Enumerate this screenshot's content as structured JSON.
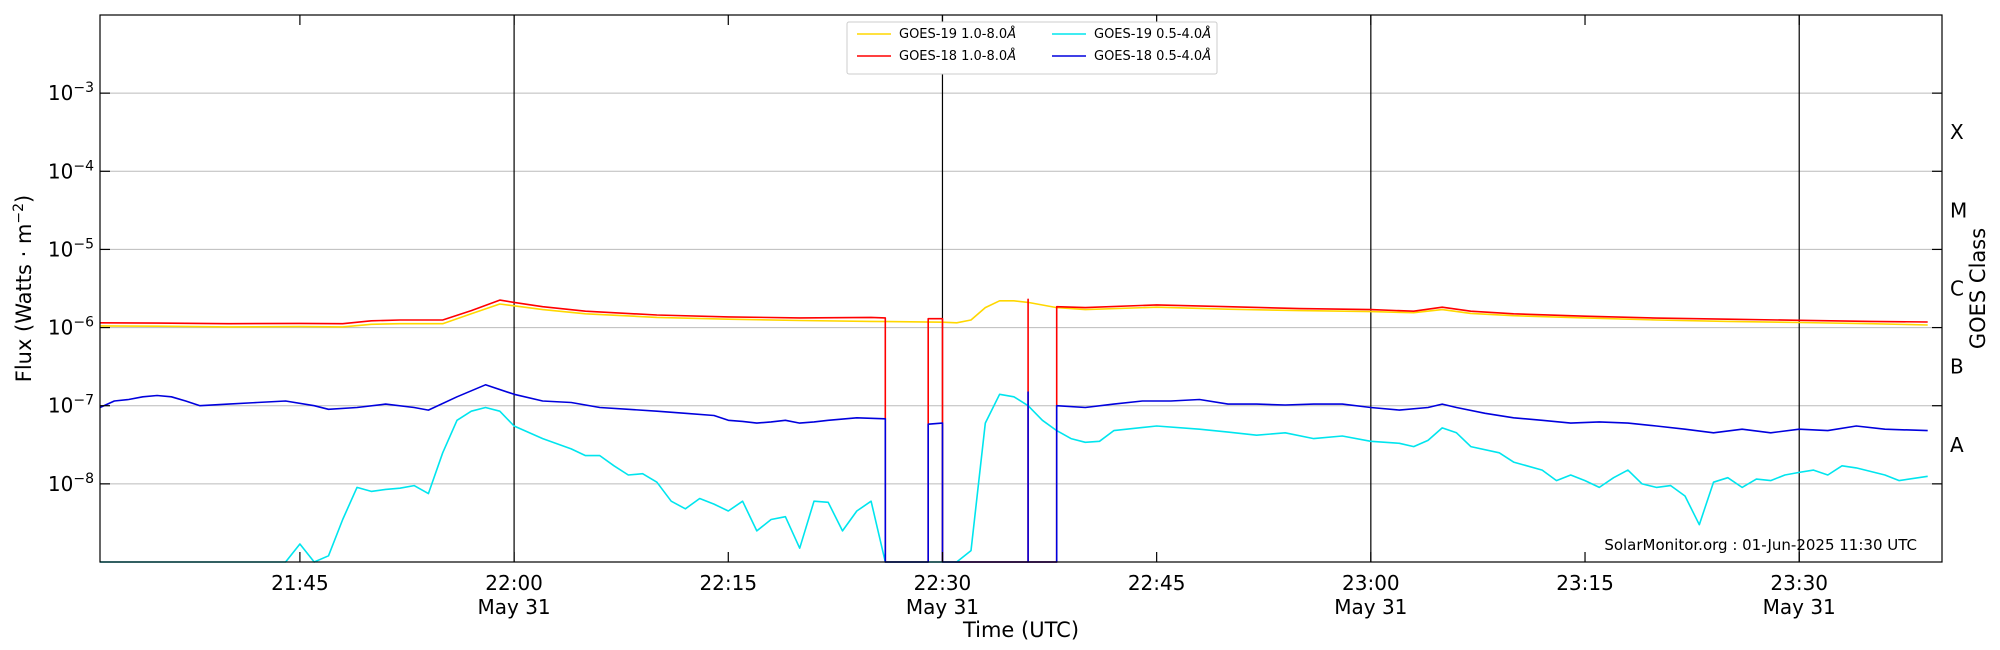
{
  "chart_data": {
    "type": "line",
    "xlabel": "Time (UTC)",
    "ylabel": "Flux (Watts · m",
    "ylabel_exp": "−2",
    "ylabel_close": ")",
    "right_label": "GOES Class",
    "y_scale": "log",
    "ylim": [
      1e-09,
      0.01
    ],
    "xlim": [
      "21:31",
      "23:40"
    ],
    "grid": "horizontal",
    "legend_position": "top-center",
    "annotation": "SolarMonitor.org : 01-Jun-2025 11:30 UTC",
    "y_ticks": [
      {
        "exp": "−8",
        "value": 1e-08
      },
      {
        "exp": "−7",
        "value": 1e-07
      },
      {
        "exp": "−6",
        "value": 1e-06
      },
      {
        "exp": "−5",
        "value": 1e-05
      },
      {
        "exp": "−4",
        "value": 0.0001
      },
      {
        "exp": "−3",
        "value": 0.001
      }
    ],
    "class_labels": [
      {
        "label": "A",
        "value": 3.16e-08
      },
      {
        "label": "B",
        "value": 3.16e-07
      },
      {
        "label": "C",
        "value": 3.16e-06
      },
      {
        "label": "M",
        "value": 3.16e-05
      },
      {
        "label": "X",
        "value": 0.000316
      }
    ],
    "x_ticks": [
      {
        "time": "21:45",
        "label": "21:45",
        "date": ""
      },
      {
        "time": "22:00",
        "label": "22:00",
        "date": "May 31"
      },
      {
        "time": "22:15",
        "label": "22:15",
        "date": ""
      },
      {
        "time": "22:30",
        "label": "22:30",
        "date": "May 31"
      },
      {
        "time": "22:45",
        "label": "22:45",
        "date": ""
      },
      {
        "time": "23:00",
        "label": "23:00",
        "date": "May 31"
      },
      {
        "time": "23:15",
        "label": "23:15",
        "date": ""
      },
      {
        "time": "23:30",
        "label": "23:30",
        "date": "May 31"
      }
    ],
    "vlines": [
      "22:00",
      "22:30",
      "23:00",
      "23:30"
    ],
    "series": [
      {
        "name": "GOES-19 1.0-8.0",
        "unit": "Å",
        "color": "#ffd700",
        "points": [
          [
            "21:31",
            1.05e-06
          ],
          [
            "21:35",
            1.04e-06
          ],
          [
            "21:40",
            1.02e-06
          ],
          [
            "21:45",
            1.03e-06
          ],
          [
            "21:48",
            1.02e-06
          ],
          [
            "21:50",
            1.1e-06
          ],
          [
            "21:52",
            1.12e-06
          ],
          [
            "21:55",
            1.12e-06
          ],
          [
            "21:57",
            1.5e-06
          ],
          [
            "21:59",
            2e-06
          ],
          [
            "22:00",
            1.9e-06
          ],
          [
            "22:02",
            1.7e-06
          ],
          [
            "22:05",
            1.5e-06
          ],
          [
            "22:10",
            1.35e-06
          ],
          [
            "22:15",
            1.28e-06
          ],
          [
            "22:20",
            1.23e-06
          ],
          [
            "22:25",
            1.2e-06
          ],
          [
            "22:30",
            1.17e-06
          ],
          [
            "22:31",
            1.15e-06
          ],
          [
            "22:32",
            1.25e-06
          ],
          [
            "22:33",
            1.8e-06
          ],
          [
            "22:34",
            2.2e-06
          ],
          [
            "22:35",
            2.2e-06
          ],
          [
            "22:36",
            2.1e-06
          ],
          [
            "22:38",
            1.8e-06
          ],
          [
            "22:40",
            1.7e-06
          ],
          [
            "22:45",
            1.82e-06
          ],
          [
            "22:50",
            1.72e-06
          ],
          [
            "22:55",
            1.65e-06
          ],
          [
            "23:00",
            1.6e-06
          ],
          [
            "23:03",
            1.55e-06
          ],
          [
            "23:05",
            1.7e-06
          ],
          [
            "23:07",
            1.52e-06
          ],
          [
            "23:10",
            1.42e-06
          ],
          [
            "23:15",
            1.33e-06
          ],
          [
            "23:20",
            1.25e-06
          ],
          [
            "23:25",
            1.2e-06
          ],
          [
            "23:30",
            1.16e-06
          ],
          [
            "23:35",
            1.12e-06
          ],
          [
            "23:39",
            1.08e-06
          ]
        ]
      },
      {
        "name": "GOES-18 1.0-8.0",
        "unit": "Å",
        "color": "#ff0000",
        "points": [
          [
            "21:31",
            1.15e-06
          ],
          [
            "21:35",
            1.14e-06
          ],
          [
            "21:40",
            1.12e-06
          ],
          [
            "21:45",
            1.13e-06
          ],
          [
            "21:48",
            1.12e-06
          ],
          [
            "21:50",
            1.22e-06
          ],
          [
            "21:52",
            1.25e-06
          ],
          [
            "21:55",
            1.25e-06
          ],
          [
            "21:57",
            1.65e-06
          ],
          [
            "21:59",
            2.25e-06
          ],
          [
            "22:00",
            2.1e-06
          ],
          [
            "22:02",
            1.85e-06
          ],
          [
            "22:05",
            1.62e-06
          ],
          [
            "22:10",
            1.45e-06
          ],
          [
            "22:15",
            1.37e-06
          ],
          [
            "22:20",
            1.33e-06
          ],
          [
            "22:25",
            1.35e-06
          ],
          [
            "22:26",
            1.33e-06
          ],
          [
            "22:26",
            1e-09
          ],
          [
            "22:29",
            1e-09
          ],
          [
            "22:29",
            1.3e-06
          ],
          [
            "22:30",
            1.3e-06
          ],
          [
            "22:30",
            1e-09
          ],
          [
            "22:36",
            1e-09
          ],
          [
            "22:36",
            2.3e-06
          ],
          [
            "22:36",
            1e-09
          ],
          [
            "22:38",
            1e-09
          ],
          [
            "22:38",
            1.85e-06
          ],
          [
            "22:40",
            1.8e-06
          ],
          [
            "22:45",
            1.95e-06
          ],
          [
            "22:50",
            1.85e-06
          ],
          [
            "22:55",
            1.75e-06
          ],
          [
            "23:00",
            1.7e-06
          ],
          [
            "23:03",
            1.62e-06
          ],
          [
            "23:05",
            1.82e-06
          ],
          [
            "23:07",
            1.62e-06
          ],
          [
            "23:10",
            1.5e-06
          ],
          [
            "23:15",
            1.4e-06
          ],
          [
            "23:20",
            1.32e-06
          ],
          [
            "23:25",
            1.28e-06
          ],
          [
            "23:30",
            1.24e-06
          ],
          [
            "23:35",
            1.2e-06
          ],
          [
            "23:39",
            1.18e-06
          ]
        ]
      },
      {
        "name": "GOES-19 0.5-4.0",
        "unit": "Å",
        "color": "#00e5ee",
        "points": [
          [
            "21:31",
            1e-09
          ],
          [
            "21:44",
            1e-09
          ],
          [
            "21:45",
            1.7e-09
          ],
          [
            "21:46",
            1e-09
          ],
          [
            "21:47",
            1.2e-09
          ],
          [
            "21:48",
            3.5e-09
          ],
          [
            "21:49",
            9e-09
          ],
          [
            "21:50",
            8e-09
          ],
          [
            "21:51",
            8.5e-09
          ],
          [
            "21:52",
            8.8e-09
          ],
          [
            "21:53",
            9.5e-09
          ],
          [
            "21:54",
            7.5e-09
          ],
          [
            "21:55",
            2.5e-08
          ],
          [
            "21:56",
            6.5e-08
          ],
          [
            "21:57",
            8.5e-08
          ],
          [
            "21:58",
            9.5e-08
          ],
          [
            "21:59",
            8.5e-08
          ],
          [
            "22:00",
            5.5e-08
          ],
          [
            "22:02",
            3.8e-08
          ],
          [
            "22:04",
            2.8e-08
          ],
          [
            "22:05",
            2.3e-08
          ],
          [
            "22:06",
            2.3e-08
          ],
          [
            "22:07",
            1.7e-08
          ],
          [
            "22:08",
            1.3e-08
          ],
          [
            "22:09",
            1.35e-08
          ],
          [
            "22:10",
            1.05e-08
          ],
          [
            "22:11",
            6e-09
          ],
          [
            "22:12",
            4.8e-09
          ],
          [
            "22:13",
            6.5e-09
          ],
          [
            "22:14",
            5.5e-09
          ],
          [
            "22:15",
            4.5e-09
          ],
          [
            "22:16",
            6e-09
          ],
          [
            "22:17",
            2.5e-09
          ],
          [
            "22:18",
            3.5e-09
          ],
          [
            "22:19",
            3.8e-09
          ],
          [
            "22:20",
            1.5e-09
          ],
          [
            "22:21",
            6e-09
          ],
          [
            "22:22",
            5.8e-09
          ],
          [
            "22:23",
            2.5e-09
          ],
          [
            "22:24",
            4.5e-09
          ],
          [
            "22:25",
            6e-09
          ],
          [
            "22:26",
            1e-09
          ],
          [
            "22:31",
            1e-09
          ],
          [
            "22:32",
            1.4e-09
          ],
          [
            "22:33",
            6e-08
          ],
          [
            "22:34",
            1.4e-07
          ],
          [
            "22:35",
            1.3e-07
          ],
          [
            "22:36",
            1e-07
          ],
          [
            "22:37",
            6.5e-08
          ],
          [
            "22:38",
            4.8e-08
          ],
          [
            "22:39",
            3.8e-08
          ],
          [
            "22:40",
            3.4e-08
          ],
          [
            "22:41",
            3.5e-08
          ],
          [
            "22:42",
            4.8e-08
          ],
          [
            "22:45",
            5.5e-08
          ],
          [
            "22:48",
            5e-08
          ],
          [
            "22:50",
            4.6e-08
          ],
          [
            "22:52",
            4.2e-08
          ],
          [
            "22:54",
            4.5e-08
          ],
          [
            "22:56",
            3.8e-08
          ],
          [
            "22:58",
            4.1e-08
          ],
          [
            "23:00",
            3.5e-08
          ],
          [
            "23:02",
            3.3e-08
          ],
          [
            "23:03",
            3e-08
          ],
          [
            "23:04",
            3.6e-08
          ],
          [
            "23:05",
            5.2e-08
          ],
          [
            "23:06",
            4.5e-08
          ],
          [
            "23:07",
            3e-08
          ],
          [
            "23:09",
            2.5e-08
          ],
          [
            "23:10",
            1.9e-08
          ],
          [
            "23:12",
            1.5e-08
          ],
          [
            "23:13",
            1.1e-08
          ],
          [
            "23:14",
            1.3e-08
          ],
          [
            "23:15",
            1.1e-08
          ],
          [
            "23:16",
            9e-09
          ],
          [
            "23:17",
            1.2e-08
          ],
          [
            "23:18",
            1.5e-08
          ],
          [
            "23:19",
            1e-08
          ],
          [
            "23:20",
            9e-09
          ],
          [
            "23:21",
            9.5e-09
          ],
          [
            "23:22",
            7e-09
          ],
          [
            "23:23",
            3e-09
          ],
          [
            "23:24",
            1.05e-08
          ],
          [
            "23:25",
            1.2e-08
          ],
          [
            "23:26",
            9e-09
          ],
          [
            "23:27",
            1.15e-08
          ],
          [
            "23:28",
            1.1e-08
          ],
          [
            "23:29",
            1.3e-08
          ],
          [
            "23:30",
            1.4e-08
          ],
          [
            "23:31",
            1.5e-08
          ],
          [
            "23:32",
            1.3e-08
          ],
          [
            "23:33",
            1.7e-08
          ],
          [
            "23:34",
            1.6e-08
          ],
          [
            "23:36",
            1.3e-08
          ],
          [
            "23:37",
            1.1e-08
          ],
          [
            "23:39",
            1.25e-08
          ]
        ]
      },
      {
        "name": "GOES-18 0.5-4.0",
        "unit": "Å",
        "color": "#0000dd",
        "points": [
          [
            "21:31",
            9.5e-08
          ],
          [
            "21:32",
            1.15e-07
          ],
          [
            "21:33",
            1.2e-07
          ],
          [
            "21:34",
            1.3e-07
          ],
          [
            "21:35",
            1.35e-07
          ],
          [
            "21:36",
            1.3e-07
          ],
          [
            "21:37",
            1.15e-07
          ],
          [
            "21:38",
            1e-07
          ],
          [
            "21:40",
            1.05e-07
          ],
          [
            "21:42",
            1.1e-07
          ],
          [
            "21:44",
            1.15e-07
          ],
          [
            "21:46",
            1e-07
          ],
          [
            "21:47",
            9e-08
          ],
          [
            "21:49",
            9.5e-08
          ],
          [
            "21:51",
            1.05e-07
          ],
          [
            "21:53",
            9.5e-08
          ],
          [
            "21:54",
            8.8e-08
          ],
          [
            "21:56",
            1.3e-07
          ],
          [
            "21:58",
            1.85e-07
          ],
          [
            "22:00",
            1.4e-07
          ],
          [
            "22:02",
            1.15e-07
          ],
          [
            "22:04",
            1.1e-07
          ],
          [
            "22:06",
            9.5e-08
          ],
          [
            "22:08",
            9e-08
          ],
          [
            "22:10",
            8.5e-08
          ],
          [
            "22:12",
            8e-08
          ],
          [
            "22:14",
            7.5e-08
          ],
          [
            "22:15",
            6.5e-08
          ],
          [
            "22:16",
            6.3e-08
          ],
          [
            "22:17",
            6e-08
          ],
          [
            "22:18",
            6.2e-08
          ],
          [
            "22:19",
            6.5e-08
          ],
          [
            "22:20",
            6e-08
          ],
          [
            "22:21",
            6.2e-08
          ],
          [
            "22:22",
            6.5e-08
          ],
          [
            "22:24",
            7e-08
          ],
          [
            "22:26",
            6.8e-08
          ],
          [
            "22:26",
            1e-09
          ],
          [
            "22:29",
            1e-09
          ],
          [
            "22:29",
            5.8e-08
          ],
          [
            "22:30",
            6e-08
          ],
          [
            "22:30",
            1e-09
          ],
          [
            "22:36",
            1e-09
          ],
          [
            "22:36",
            1.5e-07
          ],
          [
            "22:36",
            1e-09
          ],
          [
            "22:38",
            1e-09
          ],
          [
            "22:38",
            1e-07
          ],
          [
            "22:40",
            9.5e-08
          ],
          [
            "22:42",
            1.05e-07
          ],
          [
            "22:44",
            1.15e-07
          ],
          [
            "22:46",
            1.15e-07
          ],
          [
            "22:48",
            1.2e-07
          ],
          [
            "22:50",
            1.05e-07
          ],
          [
            "22:52",
            1.05e-07
          ],
          [
            "22:54",
            1.02e-07
          ],
          [
            "22:56",
            1.05e-07
          ],
          [
            "22:58",
            1.05e-07
          ],
          [
            "23:00",
            9.5e-08
          ],
          [
            "23:02",
            8.8e-08
          ],
          [
            "23:04",
            9.5e-08
          ],
          [
            "23:05",
            1.05e-07
          ],
          [
            "23:06",
            9.5e-08
          ],
          [
            "23:08",
            8e-08
          ],
          [
            "23:10",
            7e-08
          ],
          [
            "23:12",
            6.5e-08
          ],
          [
            "23:14",
            6e-08
          ],
          [
            "23:16",
            6.2e-08
          ],
          [
            "23:18",
            6e-08
          ],
          [
            "23:20",
            5.5e-08
          ],
          [
            "23:22",
            5e-08
          ],
          [
            "23:24",
            4.5e-08
          ],
          [
            "23:26",
            5e-08
          ],
          [
            "23:28",
            4.5e-08
          ],
          [
            "23:30",
            5e-08
          ],
          [
            "23:32",
            4.8e-08
          ],
          [
            "23:34",
            5.5e-08
          ],
          [
            "23:36",
            5e-08
          ],
          [
            "23:39",
            4.8e-08
          ]
        ]
      }
    ]
  }
}
